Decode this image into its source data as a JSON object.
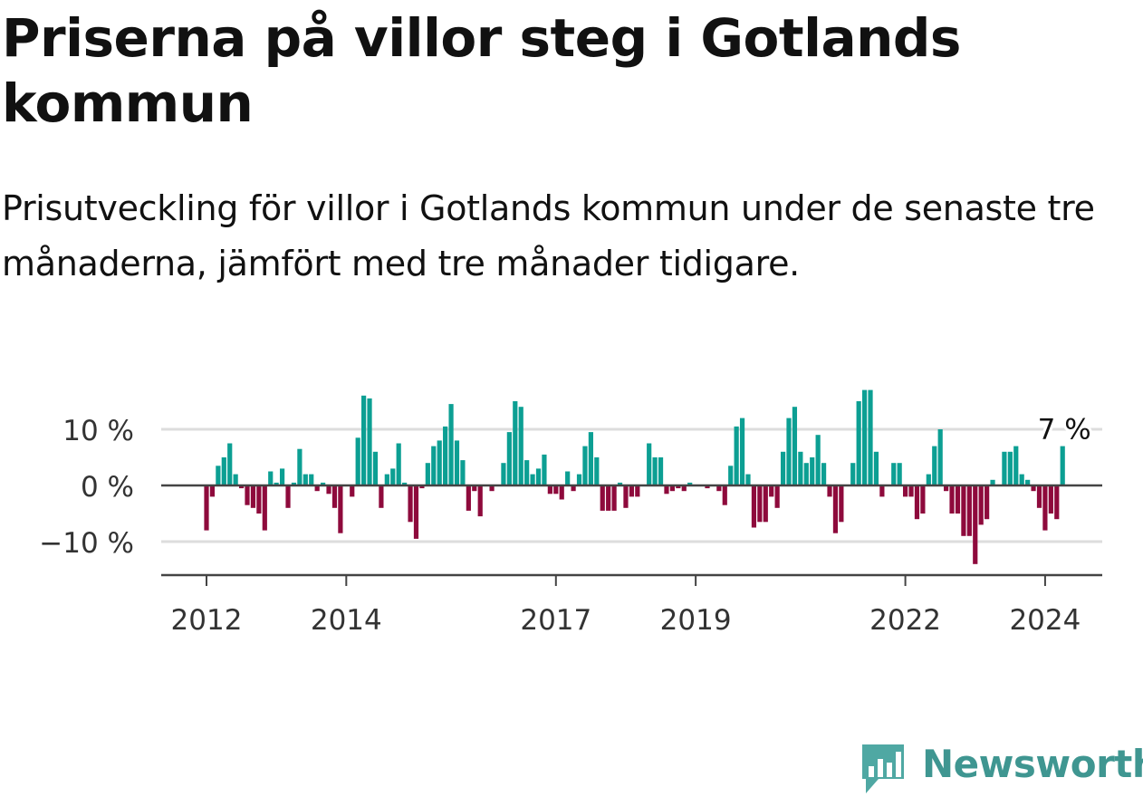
{
  "title": "Priserna på villor steg i Gotlands kommun",
  "subtitle": "Prisutveckling för villor i Gotlands kommun under de senaste tre månaderna, jämfört med tre månader tidigare.",
  "brand": {
    "name": "Newsworthy",
    "color": "#3f9691",
    "icon": "newsworthy-logo-icon"
  },
  "colors": {
    "positive": "#0c9f93",
    "negative": "#8e0a3c",
    "grid": "#dddddd",
    "axis": "#444444",
    "text": "#333333"
  },
  "chart_data": {
    "type": "bar",
    "title": "Priserna på villor steg i Gotlands kommun",
    "xlabel": "",
    "ylabel": "",
    "y_unit": "%",
    "ylim": [
      -16,
      19
    ],
    "y_ticks": [
      10,
      0,
      -10
    ],
    "y_tick_labels": [
      "10 %",
      "0 %",
      "−10 %"
    ],
    "x_ticks": [
      "2012",
      "2014",
      "2017",
      "2019",
      "2022",
      "2024"
    ],
    "x_tick_dates": [
      "2012-01",
      "2014-01",
      "2017-01",
      "2019-01",
      "2022-01",
      "2024-01"
    ],
    "grid": true,
    "last_value_label": "7 %",
    "series": [
      {
        "start": "2012-01",
        "frequency": "monthly",
        "values": [
          -8,
          -2,
          3.5,
          5,
          7.5,
          2,
          -0.5,
          -3.5,
          -4,
          -5,
          -8,
          2.5,
          0.5,
          3,
          -4,
          0.5,
          6.5,
          2,
          2,
          -1,
          0.5,
          -1.5,
          -4,
          -8.5,
          0,
          -2,
          8.5,
          16,
          15.5,
          6,
          -4,
          2,
          3,
          7.5,
          0.5,
          -6.5,
          -9.5,
          -0.5,
          4,
          7,
          8,
          10.5,
          14.5,
          8,
          4.5,
          -4.5,
          -1,
          -5.5,
          0,
          -1,
          0,
          4,
          9.5,
          15,
          14,
          4.5,
          2,
          3,
          5.5,
          -1.5,
          -1.5,
          -2.5,
          2.5,
          -1,
          2,
          7,
          9.5,
          5,
          -4.5,
          -4.5,
          -4.5,
          0.5,
          -4,
          -2,
          -2,
          0,
          7.5,
          5,
          5,
          -1.5,
          -1,
          -0.5,
          -1,
          0.5,
          0,
          0,
          -0.5,
          0,
          -1,
          -3.5,
          3.5,
          10.5,
          12,
          2,
          -7.5,
          -6.5,
          -6.5,
          -2,
          -4,
          6,
          12,
          14,
          6,
          4,
          5,
          9,
          4,
          -2,
          -8.5,
          -6.5,
          0,
          4,
          15,
          17,
          17,
          6,
          -2,
          0,
          4,
          4,
          -2,
          -2,
          -6,
          -5,
          2,
          7,
          10,
          -1,
          -5,
          -5,
          -9,
          -9,
          -14,
          -7,
          -6,
          1,
          0,
          6,
          6,
          7,
          2,
          1,
          -1,
          -4,
          -8,
          -5,
          -6,
          7
        ]
      }
    ]
  }
}
